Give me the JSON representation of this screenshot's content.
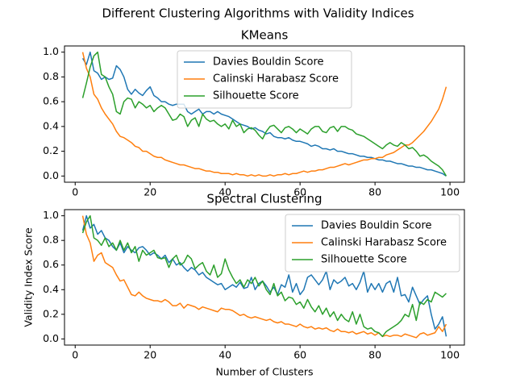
{
  "suptitle": "Different Clustering Algorithms with Validity Indices",
  "chart_data": [
    {
      "type": "line",
      "title": "KMeans",
      "legend": "upper center",
      "grid": false,
      "xlim": [
        -2.85,
        103.85
      ],
      "ylim": [
        -0.05,
        1.05
      ],
      "xticks": [
        0,
        20,
        40,
        60,
        80,
        100
      ],
      "yticks": [
        {
          "value": 0,
          "label": "0.0"
        },
        0.2,
        0.4,
        0.6,
        0.8,
        {
          "value": 1,
          "label": "1.0"
        }
      ],
      "x": [
        2,
        3,
        4,
        5,
        6,
        7,
        8,
        9,
        10,
        11,
        12,
        13,
        14,
        15,
        16,
        17,
        18,
        19,
        20,
        21,
        22,
        23,
        24,
        25,
        26,
        27,
        28,
        29,
        30,
        31,
        32,
        33,
        34,
        35,
        36,
        37,
        38,
        39,
        40,
        41,
        42,
        43,
        44,
        45,
        46,
        47,
        48,
        49,
        50,
        51,
        52,
        53,
        54,
        55,
        56,
        57,
        58,
        59,
        60,
        61,
        62,
        63,
        64,
        65,
        66,
        67,
        68,
        69,
        70,
        71,
        72,
        73,
        74,
        75,
        76,
        77,
        78,
        79,
        80,
        81,
        82,
        83,
        84,
        85,
        86,
        87,
        88,
        89,
        90,
        91,
        92,
        93,
        94,
        95,
        96,
        97,
        98,
        99
      ],
      "series": [
        {
          "name": "Davies Bouldin Score",
          "color": "#1f77b4",
          "values": [
            0.95,
            0.9,
            1.0,
            0.85,
            0.83,
            0.78,
            0.8,
            0.78,
            0.79,
            0.89,
            0.86,
            0.8,
            0.7,
            0.66,
            0.7,
            0.67,
            0.65,
            0.69,
            0.72,
            0.65,
            0.63,
            0.6,
            0.6,
            0.58,
            0.57,
            0.58,
            0.58,
            0.58,
            0.52,
            0.5,
            0.52,
            0.54,
            0.5,
            0.52,
            0.52,
            0.5,
            0.52,
            0.5,
            0.49,
            0.48,
            0.46,
            0.44,
            0.42,
            0.41,
            0.4,
            0.38,
            0.39,
            0.37,
            0.36,
            0.34,
            0.35,
            0.32,
            0.31,
            0.31,
            0.3,
            0.31,
            0.29,
            0.28,
            0.28,
            0.27,
            0.26,
            0.24,
            0.25,
            0.24,
            0.22,
            0.22,
            0.21,
            0.22,
            0.2,
            0.2,
            0.19,
            0.18,
            0.18,
            0.17,
            0.16,
            0.16,
            0.15,
            0.15,
            0.14,
            0.13,
            0.13,
            0.12,
            0.12,
            0.11,
            0.1,
            0.1,
            0.09,
            0.08,
            0.08,
            0.07,
            0.07,
            0.06,
            0.05,
            0.05,
            0.04,
            0.03,
            0.02,
            0.0
          ]
        },
        {
          "name": "Calinski Harabasz Score",
          "color": "#ff7f0e",
          "values": [
            1.0,
            0.87,
            0.8,
            0.66,
            0.62,
            0.55,
            0.5,
            0.46,
            0.42,
            0.36,
            0.32,
            0.31,
            0.29,
            0.27,
            0.24,
            0.23,
            0.2,
            0.2,
            0.18,
            0.16,
            0.15,
            0.15,
            0.13,
            0.12,
            0.11,
            0.1,
            0.09,
            0.09,
            0.08,
            0.07,
            0.06,
            0.06,
            0.05,
            0.04,
            0.04,
            0.03,
            0.03,
            0.02,
            0.02,
            0.02,
            0.01,
            0.02,
            0.01,
            0.01,
            0.0,
            0.01,
            0.0,
            0.01,
            0.0,
            0.0,
            0.01,
            0.0,
            0.01,
            0.01,
            0.02,
            0.01,
            0.02,
            0.02,
            0.03,
            0.04,
            0.03,
            0.04,
            0.04,
            0.05,
            0.05,
            0.06,
            0.07,
            0.07,
            0.08,
            0.09,
            0.1,
            0.09,
            0.1,
            0.11,
            0.12,
            0.13,
            0.13,
            0.14,
            0.14,
            0.15,
            0.15,
            0.17,
            0.18,
            0.19,
            0.21,
            0.23,
            0.25,
            0.25,
            0.27,
            0.3,
            0.33,
            0.36,
            0.4,
            0.44,
            0.49,
            0.54,
            0.62,
            0.72
          ]
        },
        {
          "name": "Silhouette Score",
          "color": "#2ca02c",
          "values": [
            0.63,
            0.75,
            0.88,
            0.97,
            1.0,
            0.82,
            0.8,
            0.72,
            0.66,
            0.52,
            0.5,
            0.6,
            0.63,
            0.62,
            0.55,
            0.6,
            0.58,
            0.55,
            0.57,
            0.52,
            0.55,
            0.57,
            0.55,
            0.5,
            0.45,
            0.46,
            0.5,
            0.48,
            0.4,
            0.45,
            0.47,
            0.4,
            0.5,
            0.46,
            0.44,
            0.45,
            0.42,
            0.4,
            0.42,
            0.38,
            0.45,
            0.4,
            0.42,
            0.35,
            0.38,
            0.39,
            0.37,
            0.33,
            0.3,
            0.36,
            0.4,
            0.41,
            0.38,
            0.35,
            0.39,
            0.4,
            0.38,
            0.35,
            0.38,
            0.36,
            0.34,
            0.38,
            0.4,
            0.4,
            0.36,
            0.35,
            0.39,
            0.4,
            0.36,
            0.4,
            0.4,
            0.38,
            0.37,
            0.34,
            0.33,
            0.32,
            0.3,
            0.28,
            0.26,
            0.24,
            0.22,
            0.25,
            0.27,
            0.25,
            0.24,
            0.27,
            0.25,
            0.22,
            0.23,
            0.2,
            0.16,
            0.17,
            0.15,
            0.12,
            0.1,
            0.08,
            0.05,
            0.0
          ]
        }
      ]
    },
    {
      "type": "line",
      "title": "Spectral Clustering",
      "legend": "upper right",
      "grid": false,
      "xlabel": "Number of Clusters",
      "ylabel": "Validity Index Score",
      "xlim": [
        -2.85,
        103.85
      ],
      "ylim": [
        -0.05,
        1.05
      ],
      "xticks": [
        0,
        20,
        40,
        60,
        80,
        100
      ],
      "yticks": [
        {
          "value": 0,
          "label": "0.0"
        },
        0.2,
        0.4,
        0.6,
        0.8,
        {
          "value": 1,
          "label": "1.0"
        }
      ],
      "x": [
        2,
        3,
        4,
        5,
        6,
        7,
        8,
        9,
        10,
        11,
        12,
        13,
        14,
        15,
        16,
        17,
        18,
        19,
        20,
        21,
        22,
        23,
        24,
        25,
        26,
        27,
        28,
        29,
        30,
        31,
        32,
        33,
        34,
        35,
        36,
        37,
        38,
        39,
        40,
        41,
        42,
        43,
        44,
        45,
        46,
        47,
        48,
        49,
        50,
        51,
        52,
        53,
        54,
        55,
        56,
        57,
        58,
        59,
        60,
        61,
        62,
        63,
        64,
        65,
        66,
        67,
        68,
        69,
        70,
        71,
        72,
        73,
        74,
        75,
        76,
        77,
        78,
        79,
        80,
        81,
        82,
        83,
        84,
        85,
        86,
        87,
        88,
        89,
        90,
        91,
        92,
        93,
        94,
        95,
        96,
        97,
        98,
        99
      ],
      "series": [
        {
          "name": "Davies Bouldin Score",
          "color": "#1f77b4",
          "values": [
            0.88,
            1.0,
            0.9,
            0.93,
            0.85,
            0.88,
            0.82,
            0.8,
            0.75,
            0.72,
            0.78,
            0.7,
            0.75,
            0.72,
            0.7,
            0.74,
            0.75,
            0.72,
            0.68,
            0.7,
            0.68,
            0.65,
            0.68,
            0.62,
            0.65,
            0.6,
            0.62,
            0.58,
            0.55,
            0.58,
            0.56,
            0.52,
            0.54,
            0.5,
            0.48,
            0.46,
            0.44,
            0.45,
            0.4,
            0.42,
            0.44,
            0.42,
            0.46,
            0.41,
            0.42,
            0.5,
            0.4,
            0.45,
            0.47,
            0.43,
            0.38,
            0.42,
            0.36,
            0.44,
            0.42,
            0.52,
            0.38,
            0.45,
            0.36,
            0.4,
            0.5,
            0.52,
            0.48,
            0.44,
            0.48,
            0.55,
            0.4,
            0.48,
            0.45,
            0.47,
            0.5,
            0.43,
            0.45,
            0.4,
            0.46,
            0.55,
            0.38,
            0.45,
            0.4,
            0.45,
            0.38,
            0.45,
            0.47,
            0.38,
            0.5,
            0.35,
            0.36,
            0.3,
            0.42,
            0.35,
            0.28,
            0.32,
            0.35,
            0.2,
            0.08,
            0.12,
            0.18,
            0.02
          ]
        },
        {
          "name": "Calinski Harabasz Score",
          "color": "#ff7f0e",
          "values": [
            1.0,
            0.85,
            0.78,
            0.63,
            0.68,
            0.7,
            0.62,
            0.6,
            0.58,
            0.52,
            0.47,
            0.48,
            0.42,
            0.36,
            0.35,
            0.38,
            0.35,
            0.33,
            0.32,
            0.31,
            0.31,
            0.3,
            0.32,
            0.3,
            0.27,
            0.27,
            0.29,
            0.25,
            0.28,
            0.27,
            0.26,
            0.24,
            0.26,
            0.25,
            0.24,
            0.23,
            0.22,
            0.25,
            0.24,
            0.24,
            0.23,
            0.21,
            0.19,
            0.2,
            0.18,
            0.17,
            0.18,
            0.17,
            0.16,
            0.15,
            0.16,
            0.14,
            0.13,
            0.14,
            0.12,
            0.12,
            0.11,
            0.1,
            0.12,
            0.1,
            0.09,
            0.1,
            0.08,
            0.09,
            0.08,
            0.09,
            0.07,
            0.06,
            0.08,
            0.06,
            0.06,
            0.05,
            0.06,
            0.04,
            0.05,
            0.06,
            0.04,
            0.05,
            0.03,
            0.05,
            0.02,
            0.03,
            0.02,
            0.03,
            0.03,
            0.02,
            0.04,
            0.03,
            0.02,
            0.01,
            0.04,
            0.05,
            0.03,
            0.04,
            0.05,
            0.1,
            0.06,
            0.12
          ]
        },
        {
          "name": "Silhouette Score",
          "color": "#2ca02c",
          "values": [
            0.86,
            0.95,
            1.0,
            0.82,
            0.8,
            0.76,
            0.82,
            0.75,
            0.78,
            0.72,
            0.8,
            0.72,
            0.78,
            0.7,
            0.75,
            0.63,
            0.72,
            0.68,
            0.7,
            0.72,
            0.66,
            0.65,
            0.66,
            0.58,
            0.65,
            0.68,
            0.6,
            0.62,
            0.68,
            0.65,
            0.57,
            0.6,
            0.62,
            0.55,
            0.52,
            0.6,
            0.5,
            0.53,
            0.65,
            0.56,
            0.5,
            0.45,
            0.48,
            0.42,
            0.48,
            0.45,
            0.5,
            0.43,
            0.47,
            0.4,
            0.36,
            0.45,
            0.35,
            0.38,
            0.31,
            0.34,
            0.33,
            0.28,
            0.3,
            0.25,
            0.32,
            0.26,
            0.22,
            0.27,
            0.2,
            0.25,
            0.18,
            0.22,
            0.15,
            0.2,
            0.16,
            0.14,
            0.22,
            0.12,
            0.2,
            0.1,
            0.08,
            0.09,
            0.06,
            0.05,
            0.02,
            0.06,
            0.08,
            0.1,
            0.12,
            0.15,
            0.2,
            0.18,
            0.28,
            0.15,
            0.3,
            0.28,
            0.32,
            0.3,
            0.38,
            0.36,
            0.34,
            0.37
          ]
        }
      ]
    }
  ]
}
